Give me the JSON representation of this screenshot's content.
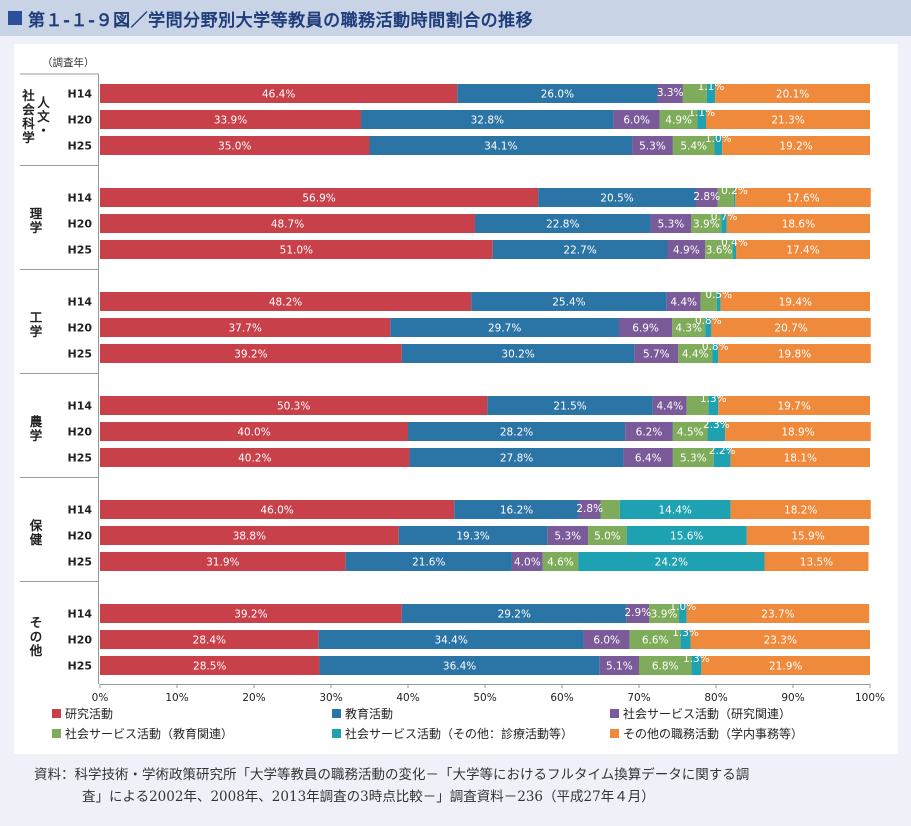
{
  "title": "第１-１-９図／学問分野別大学等教員の職務活動時間割合の推移",
  "chart_data": {
    "type": "bar",
    "stacked": true,
    "orientation": "horizontal",
    "ylabel": "（調査年）",
    "x_ticks": [
      "0%",
      "10%",
      "20%",
      "30%",
      "40%",
      "50%",
      "60%",
      "70%",
      "80%",
      "90%",
      "100%"
    ],
    "xlim": [
      0,
      100
    ],
    "series": [
      {
        "name": "研究活動",
        "color": "#c8414a"
      },
      {
        "name": "教育活動",
        "color": "#2b74a6"
      },
      {
        "name": "社会サービス活動（研究関連）",
        "color": "#7a5a98"
      },
      {
        "name": "社会サービス活動（教育関連）",
        "color": "#7fac5a"
      },
      {
        "name": "社会サービス活動（その他：診療活動等）",
        "color": "#1ea1b0"
      },
      {
        "name": "その他の職務活動（学内事務等）",
        "color": "#ef8a3c"
      }
    ],
    "groups": [
      {
        "name": "人文・\n社会科学",
        "rows": [
          {
            "year": "H14",
            "values": [
              46.4,
              26.0,
              3.3,
              3.1,
              1.1,
              20.1
            ]
          },
          {
            "year": "H20",
            "values": [
              33.9,
              32.8,
              6.0,
              4.9,
              1.1,
              21.3
            ]
          },
          {
            "year": "H25",
            "values": [
              35.0,
              34.1,
              5.3,
              5.4,
              1.0,
              19.2
            ]
          }
        ]
      },
      {
        "name": "理学",
        "rows": [
          {
            "year": "H14",
            "values": [
              56.9,
              20.5,
              2.8,
              2.1,
              0.2,
              17.6
            ]
          },
          {
            "year": "H20",
            "values": [
              48.7,
              22.8,
              5.3,
              3.9,
              0.7,
              18.6
            ]
          },
          {
            "year": "H25",
            "values": [
              51.0,
              22.7,
              4.9,
              3.6,
              0.4,
              17.4
            ]
          }
        ]
      },
      {
        "name": "工学",
        "rows": [
          {
            "year": "H14",
            "values": [
              48.2,
              25.4,
              4.4,
              2.1,
              0.5,
              19.4
            ]
          },
          {
            "year": "H20",
            "values": [
              37.7,
              29.7,
              6.9,
              4.3,
              0.8,
              20.7
            ]
          },
          {
            "year": "H25",
            "values": [
              39.2,
              30.2,
              5.7,
              4.4,
              0.8,
              19.8
            ]
          }
        ]
      },
      {
        "name": "農学",
        "rows": [
          {
            "year": "H14",
            "values": [
              50.3,
              21.5,
              4.4,
              2.8,
              1.3,
              19.7
            ]
          },
          {
            "year": "H20",
            "values": [
              40.0,
              28.2,
              6.2,
              4.5,
              2.3,
              18.9
            ]
          },
          {
            "year": "H25",
            "values": [
              40.2,
              27.8,
              6.4,
              5.3,
              2.2,
              18.1
            ]
          }
        ]
      },
      {
        "name": "保健",
        "rows": [
          {
            "year": "H14",
            "values": [
              46.0,
              16.2,
              2.8,
              2.5,
              14.4,
              18.2
            ]
          },
          {
            "year": "H20",
            "values": [
              38.8,
              19.3,
              5.3,
              5.0,
              15.6,
              15.9
            ]
          },
          {
            "year": "H25",
            "values": [
              31.9,
              21.6,
              4.0,
              4.6,
              24.2,
              13.5
            ]
          }
        ]
      },
      {
        "name": "その他",
        "rows": [
          {
            "year": "H14",
            "values": [
              39.2,
              29.2,
              2.9,
              3.9,
              1.0,
              23.7
            ]
          },
          {
            "year": "H20",
            "values": [
              28.4,
              34.4,
              6.0,
              6.6,
              1.3,
              23.3
            ]
          },
          {
            "year": "H25",
            "values": [
              28.5,
              36.4,
              5.1,
              6.8,
              1.3,
              21.9
            ]
          }
        ]
      }
    ]
  },
  "source_line1": "資料：科学技術・学術政策研究所「大学等教員の職務活動の変化－「大学等におけるフルタイム換算データに関する調",
  "source_line2": "査」による2002年、2008年、2013年調査の3時点比較－」調査資料－236（平成27年４月）"
}
